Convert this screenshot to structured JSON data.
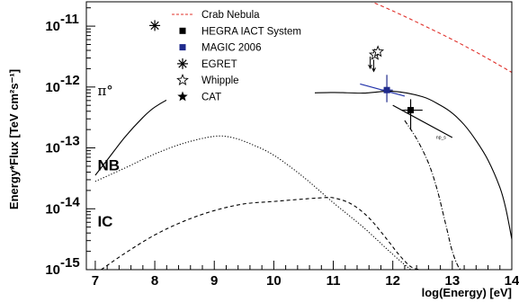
{
  "chart_data": {
    "type": "line",
    "xlabel": "log(Energy) [eV]",
    "ylabel": "Energy*Flux [TeV cm²s⁻¹]",
    "xlim": [
      6.85,
      14.0
    ],
    "ylim_log10": [
      -15,
      -10.6
    ],
    "log_y": true,
    "grid": false,
    "legend_position": "top-center",
    "x_ticks": [
      {
        "v": 7,
        "label": "7"
      },
      {
        "v": 8,
        "label": "8"
      },
      {
        "v": 9,
        "label": "9"
      },
      {
        "v": 10,
        "label": "10"
      },
      {
        "v": 11,
        "label": "11"
      },
      {
        "v": 12,
        "label": "12"
      },
      {
        "v": 13,
        "label": "13"
      },
      {
        "v": 14,
        "label": "14"
      }
    ],
    "y_ticks": [
      {
        "e": -15,
        "label": "10",
        "exp": "-15"
      },
      {
        "e": -14,
        "label": "10",
        "exp": "-14"
      },
      {
        "e": -13,
        "label": "10",
        "exp": "-13"
      },
      {
        "e": -12,
        "label": "10",
        "exp": "-12"
      },
      {
        "e": -11,
        "label": "10",
        "exp": "-11"
      }
    ],
    "legend": [
      {
        "label": "Crab Nebula",
        "symbol": "dashed-red"
      },
      {
        "label": "HEGRA IACT System",
        "symbol": "square-black"
      },
      {
        "label": "MAGIC 2006",
        "symbol": "square-blue"
      },
      {
        "label": "EGRET",
        "symbol": "asterisk"
      },
      {
        "label": "Whipple",
        "symbol": "open-star"
      },
      {
        "label": "CAT",
        "symbol": "filled-star"
      }
    ],
    "annotations": [
      {
        "text": "π°",
        "x": 7.25,
        "y_log10": -12.05,
        "style": "pi"
      },
      {
        "text": "NB",
        "x": 7.25,
        "y_log10": -13.28,
        "style": "bold"
      },
      {
        "text": "IC",
        "x": 7.25,
        "y_log10": -14.2,
        "style": "bold"
      }
    ],
    "series": [
      {
        "style": "crab",
        "x": [
          11.6,
          12.0,
          12.5,
          13.0,
          13.5,
          14.0
        ],
        "y_log10": [
          -10.58,
          -10.75,
          -10.98,
          -11.22,
          -11.48,
          -11.76
        ]
      },
      {
        "style": "solid",
        "x": [
          7.0,
          7.2,
          7.5,
          7.8,
          8.0,
          8.3,
          8.6,
          9.0,
          9.3,
          9.6,
          10.0,
          10.5,
          11.0,
          11.5,
          12.0,
          12.5,
          12.8,
          13.0,
          13.2,
          13.4,
          13.6,
          13.8,
          13.9,
          14.0
        ],
        "y_log10": [
          -13.45,
          -13.2,
          -12.82,
          -12.5,
          -12.33,
          -12.17,
          -12.11,
          -12.1,
          -12.14,
          -12.2,
          -12.2,
          -12.11,
          -12.09,
          -12.1,
          -12.07,
          -12.16,
          -12.3,
          -12.43,
          -12.62,
          -12.88,
          -13.2,
          -13.65,
          -14.0,
          -14.5
        ]
      },
      {
        "style": "dotted",
        "x": [
          7.0,
          7.5,
          8.0,
          8.5,
          9.0,
          9.3,
          9.6,
          10.0,
          10.5,
          11.0,
          11.5,
          12.0,
          12.3
        ],
        "y_log10": [
          -13.55,
          -13.33,
          -13.1,
          -12.92,
          -12.81,
          -12.83,
          -12.93,
          -13.12,
          -13.48,
          -13.9,
          -14.3,
          -14.75,
          -15.0
        ]
      },
      {
        "style": "dashed",
        "x": [
          7.1,
          7.5,
          8.0,
          8.5,
          9.0,
          9.5,
          10.0,
          10.5,
          10.8,
          11.0,
          11.3,
          11.6,
          11.9,
          12.1,
          12.3,
          12.45
        ],
        "y_log10": [
          -15.0,
          -14.73,
          -14.43,
          -14.2,
          -14.03,
          -13.92,
          -13.88,
          -13.84,
          -13.82,
          -13.82,
          -13.92,
          -14.15,
          -14.5,
          -14.75,
          -14.95,
          -15.0
        ]
      },
      {
        "style": "dashdot",
        "x": [
          12.2,
          12.4,
          12.6,
          12.75,
          12.9,
          13.0,
          13.1,
          13.15
        ],
        "y_log10": [
          -12.55,
          -12.85,
          -13.25,
          -13.7,
          -14.3,
          -14.7,
          -14.95,
          -15.0
        ]
      }
    ],
    "fits": [
      {
        "color": "#2233aa",
        "x": [
          11.45,
          12.2
        ],
        "y_log10": [
          -11.95,
          -12.15
        ]
      },
      {
        "color": "#000000",
        "x": [
          12.0,
          13.0
        ],
        "y_log10": [
          -12.3,
          -12.83
        ]
      }
    ],
    "points": [
      {
        "label": "EGRET",
        "symbol": "asterisk",
        "x": 8.0,
        "y_log10": -10.99
      },
      {
        "label": "Whipple",
        "symbol": "open-star",
        "x": 11.7,
        "y_log10": -11.47
      },
      {
        "label": "Whipple",
        "symbol": "open-star",
        "x": 11.75,
        "y_log10": -11.42
      },
      {
        "label": "MAGIC 2006",
        "symbol": "square-blue",
        "x": 11.9,
        "y_log10": -12.05,
        "y_err_log10": [
          -12.25,
          -11.8
        ],
        "x_err": [
          11.8,
          12.0
        ]
      },
      {
        "label": "HEGRA IACT System",
        "symbol": "square-black",
        "x": 12.3,
        "y_log10": -12.38,
        "y_err_log10": [
          -12.7,
          -12.2
        ],
        "x_err": [
          12.15,
          12.5
        ]
      }
    ],
    "upper_limits": [
      {
        "x": 11.62,
        "y_log10": -11.5
      },
      {
        "x": 11.68,
        "y_log10": -11.55
      }
    ],
    "extra_text": {
      "text": "np_s",
      "x": 12.85,
      "y_log10": -12.85
    }
  }
}
